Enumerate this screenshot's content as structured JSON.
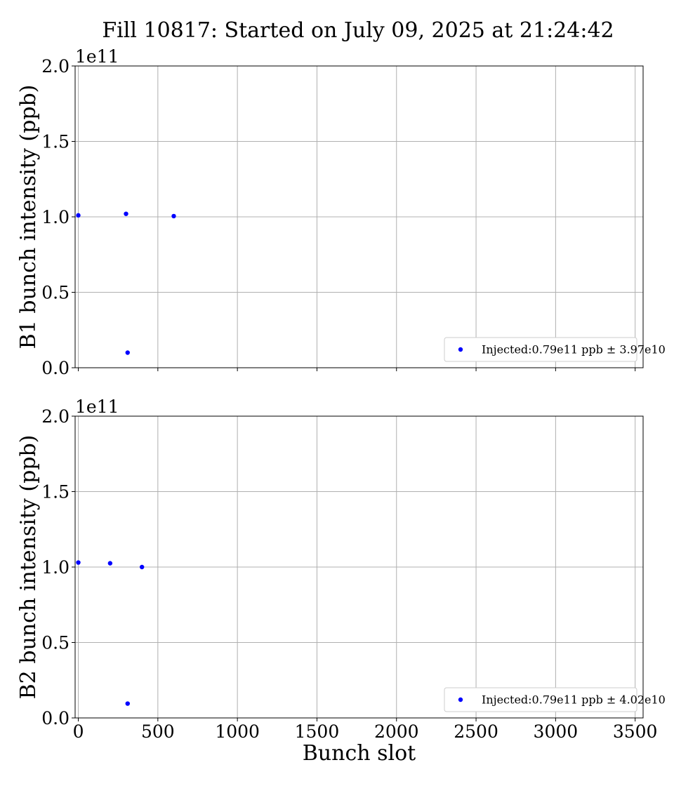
{
  "figure": {
    "title": "Fill 10817: Started on July 09, 2025 at 21:24:42"
  },
  "colors": {
    "marker": "#0000ff",
    "grid": "#b0b0b0",
    "axis": "#000000"
  },
  "chart_data": [
    {
      "type": "scatter",
      "ylabel": "B1 bunch intensity (ppb)",
      "xlabel": "",
      "y_offset_label": "1e11",
      "xlim": [
        -20,
        3550
      ],
      "ylim": [
        0,
        200000000000.0
      ],
      "xticks": [
        0,
        500,
        1000,
        1500,
        2000,
        2500,
        3000,
        3500
      ],
      "xtick_labels_visible": false,
      "yticks": [
        0,
        50000000000.0,
        100000000000.0,
        150000000000.0,
        200000000000.0
      ],
      "ytick_labels": [
        "0.0",
        "0.5",
        "1.0",
        "1.5",
        "2.0"
      ],
      "grid": true,
      "legend_position": "lower-right",
      "series": [
        {
          "name": "Injected:0.79e11 ppb ± 3.97e10",
          "x": [
            0,
            300,
            310,
            600
          ],
          "y": [
            101000000000.0,
            102000000000.0,
            10000000000.0,
            100500000000.0
          ]
        }
      ]
    },
    {
      "type": "scatter",
      "ylabel": "B2 bunch intensity (ppb)",
      "xlabel": "Bunch slot",
      "y_offset_label": "1e11",
      "xlim": [
        -20,
        3550
      ],
      "ylim": [
        0,
        200000000000.0
      ],
      "xticks": [
        0,
        500,
        1000,
        1500,
        2000,
        2500,
        3000,
        3500
      ],
      "xtick_labels": [
        "0",
        "500",
        "1000",
        "1500",
        "2000",
        "2500",
        "3000",
        "3500"
      ],
      "xtick_labels_visible": true,
      "yticks": [
        0,
        50000000000.0,
        100000000000.0,
        150000000000.0,
        200000000000.0
      ],
      "ytick_labels": [
        "0.0",
        "0.5",
        "1.0",
        "1.5",
        "2.0"
      ],
      "grid": true,
      "legend_position": "lower-right",
      "series": [
        {
          "name": "Injected:0.79e11 ppb ± 4.02e10",
          "x": [
            0,
            200,
            310,
            400
          ],
          "y": [
            103000000000.0,
            102500000000.0,
            9500000000.0,
            100000000000.0
          ]
        }
      ]
    }
  ]
}
